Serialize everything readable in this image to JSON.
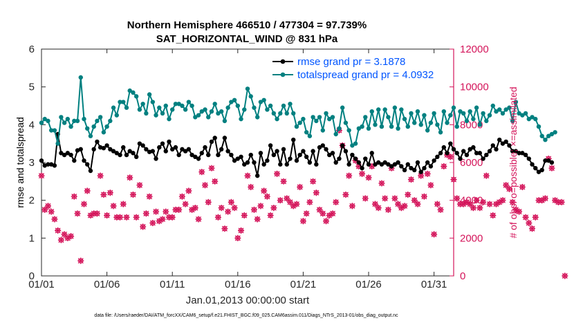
{
  "colors": {
    "rmse": "#000000",
    "totalspread": "#008080",
    "obs": "#d4145a",
    "legend_text": "#0055ff",
    "axis": "#262626"
  },
  "chart_data": {
    "type": "line",
    "title": "Northern Hemisphere 466510 / 477304 = 97.739%",
    "subtitle": "SAT_HORIZONTAL_WIND @ 831 hPa",
    "xlabel": "Jan.01,2013 00:00:00 start",
    "ylabel": "rmse and totalspread",
    "y2label": "# of obs: o=possible; ×=assimilated",
    "footnote": "data file: /Users/raeder/DAI/ATM_forcXX/CAM6_setup/f.e21.FHIST_BGC.f09_025.CAM6assim.011/Diags_NTrS_2013-01/obs_diag_output.nc",
    "x_range": [
      1,
      32.5
    ],
    "xticks": [
      1,
      6,
      11,
      16,
      21,
      26,
      31
    ],
    "xtick_labels": [
      "01/01",
      "01/06",
      "01/11",
      "01/16",
      "01/21",
      "01/26",
      "01/31"
    ],
    "ylim": [
      0,
      6
    ],
    "yticks": [
      "0",
      "1",
      "2",
      "3",
      "4",
      "5",
      "6"
    ],
    "y2lim": [
      0,
      12000
    ],
    "y2ticks": [
      "0",
      "2000",
      "4000",
      "6000",
      "8000",
      "10000",
      "12000"
    ],
    "legend": [
      "rmse grand pr = 3.1878",
      "totalspread grand pr = 4.0932"
    ],
    "legend_position": "top-right",
    "grid": false,
    "step_days": 0.25,
    "x_start": 1,
    "series": [
      {
        "name": "rmse",
        "axis": "left",
        "values": [
          3.05,
          2.92,
          2.95,
          2.95,
          2.92,
          3.75,
          3.25,
          3.2,
          3.25,
          3.2,
          3.05,
          3.32,
          3.35,
          3.05,
          2.95,
          2.78,
          3.35,
          3.55,
          3.4,
          3.38,
          3.45,
          3.35,
          3.3,
          3.25,
          3.2,
          3.4,
          3.2,
          3.3,
          3.25,
          3.15,
          3.5,
          3.45,
          3.35,
          3.28,
          3.3,
          3.1,
          3.4,
          3.5,
          3.3,
          3.55,
          3.35,
          3.4,
          3.2,
          3.35,
          3.3,
          3.35,
          3.2,
          3.15,
          3.1,
          3.25,
          3.4,
          3.2,
          3.55,
          3.65,
          3.2,
          3.35,
          3.65,
          3.3,
          3.2,
          3.05,
          3.1,
          3.15,
          2.95,
          3.0,
          3.2,
          3.0,
          2.65,
          3.25,
          2.95,
          3.05,
          3.45,
          3.2,
          3.3,
          2.95,
          3.35,
          2.95,
          3.1,
          3.6,
          3.05,
          3.2,
          3.3,
          3.15,
          3.0,
          3.3,
          2.95,
          3.4,
          3.45,
          3.35,
          3.2,
          3.25,
          3.0,
          3.1,
          3.45,
          3.3,
          2.95,
          3.2,
          3.1,
          3.0,
          2.85,
          3.1,
          2.95,
          3.25,
          2.95,
          3.0,
          2.95,
          3.0,
          2.95,
          2.9,
          2.95,
          3.0,
          2.9,
          2.8,
          2.95,
          2.85,
          2.8,
          3.0,
          2.75,
          2.85,
          3.0,
          2.9,
          3.05,
          3.15,
          3.25,
          3.4,
          3.25,
          3.5,
          3.35,
          3.25,
          3.1,
          3.3,
          3.2,
          3.35,
          3.4,
          3.25,
          3.25,
          3.1,
          3.2,
          3.3,
          3.45,
          3.35,
          3.6,
          3.5,
          3.55,
          3.45,
          3.3,
          3.3,
          3.25,
          3.25,
          3.2,
          3.1,
          2.95,
          2.85,
          2.75,
          2.8,
          3.05,
          3.05,
          3.0
        ]
      },
      {
        "name": "totalspread",
        "axis": "left",
        "values": [
          4.05,
          4.15,
          4.1,
          3.85,
          3.85,
          3.5,
          4.2,
          4.05,
          4.15,
          3.95,
          4.1,
          4.1,
          5.25,
          4.15,
          3.9,
          3.7,
          3.95,
          4.1,
          4.2,
          3.8,
          3.95,
          4.1,
          4.45,
          4.25,
          4.6,
          4.6,
          4.45,
          4.9,
          4.85,
          4.75,
          4.4,
          4.55,
          4.3,
          4.8,
          4.6,
          4.25,
          4.45,
          4.3,
          4.5,
          4.15,
          4.4,
          4.55,
          4.55,
          4.5,
          4.4,
          4.6,
          4.5,
          4.2,
          4.25,
          4.35,
          4.4,
          4.2,
          4.35,
          4.55,
          4.3,
          4.35,
          4.1,
          4.45,
          4.6,
          4.65,
          4.5,
          4.15,
          4.4,
          4.95,
          4.75,
          4.45,
          4.2,
          4.6,
          4.65,
          4.4,
          4.5,
          4.3,
          4.15,
          4.3,
          4.5,
          4.3,
          4.55,
          4.3,
          3.95,
          4.05,
          4.15,
          3.8,
          3.7,
          4.2,
          4.1,
          4.2,
          3.85,
          4.3,
          4.15,
          4.2,
          3.75,
          3.9,
          4.45,
          4.05,
          3.85,
          3.45,
          3.5,
          3.9,
          3.95,
          4.2,
          3.9,
          4.35,
          4.0,
          4.4,
          3.95,
          4.4,
          4.2,
          3.95,
          4.45,
          3.9,
          4.4,
          4.15,
          3.95,
          4.3,
          4.05,
          4.35,
          4.0,
          4.25,
          3.85,
          4.05,
          4.3,
          4.0,
          3.8,
          4.35,
          4.05,
          4.25,
          4.45,
          3.95,
          4.35,
          4.3,
          4.1,
          4.35,
          4.15,
          4.45,
          4.0,
          4.3,
          4.1,
          4.25,
          4.5,
          4.35,
          4.4,
          4.3,
          4.4,
          4.45,
          4.1,
          4.6,
          4.3,
          4.25,
          4.3,
          4.15,
          4.2,
          4.15,
          3.95,
          3.7,
          3.6,
          3.7,
          3.75,
          3.8
        ]
      },
      {
        "name": "obs possible / assimilated",
        "axis": "right",
        "values": [
          5300,
          3500,
          3700,
          3400,
          3000,
          2400,
          1900,
          2200,
          2000,
          2100,
          4200,
          3300,
          800,
          3800,
          4500,
          3200,
          3300,
          3300,
          5300,
          4300,
          3200,
          4400,
          3700,
          3100,
          3100,
          3800,
          3100,
          5200,
          4300,
          3100,
          4800,
          2600,
          3300,
          4200,
          2800,
          3400,
          2900,
          3000,
          3400,
          3100,
          3100,
          3500,
          3500,
          4200,
          3800,
          4500,
          3500,
          3600,
          3000,
          5500,
          4800,
          3900,
          5700,
          5000,
          3100,
          3600,
          2500,
          3400,
          3900,
          3600,
          2000,
          2400,
          3200,
          5300,
          4700,
          3500,
          3000,
          3700,
          4500,
          4200,
          3200,
          3600,
          5400,
          4000,
          5000,
          4100,
          3900,
          3700,
          3800,
          4700,
          2900,
          3300,
          3900,
          5000,
          4400,
          3500,
          3300,
          2900,
          3200,
          3300,
          3900,
          7700,
          6900,
          4300,
          5300,
          3700,
          6100,
          5800,
          5400,
          4100,
          5200,
          5800,
          3800,
          3600,
          4900,
          4100,
          3500,
          5700,
          4100,
          3800,
          3600,
          3700,
          4300,
          5100,
          4000,
          3800,
          5300,
          4200,
          5400,
          4800,
          2200,
          3800,
          3500,
          5800,
          6400,
          6300,
          5100,
          4100,
          3800,
          3800,
          3900,
          3800,
          3600,
          4000,
          3600,
          3900,
          5300,
          3800,
          3200,
          3800,
          3900,
          4000,
          4800,
          4600,
          3900,
          3500,
          3400,
          4700,
          3100,
          2800,
          2500,
          3100,
          4000,
          4000,
          4100,
          6200,
          5700,
          4000,
          3900,
          3900,
          0
        ]
      }
    ]
  }
}
